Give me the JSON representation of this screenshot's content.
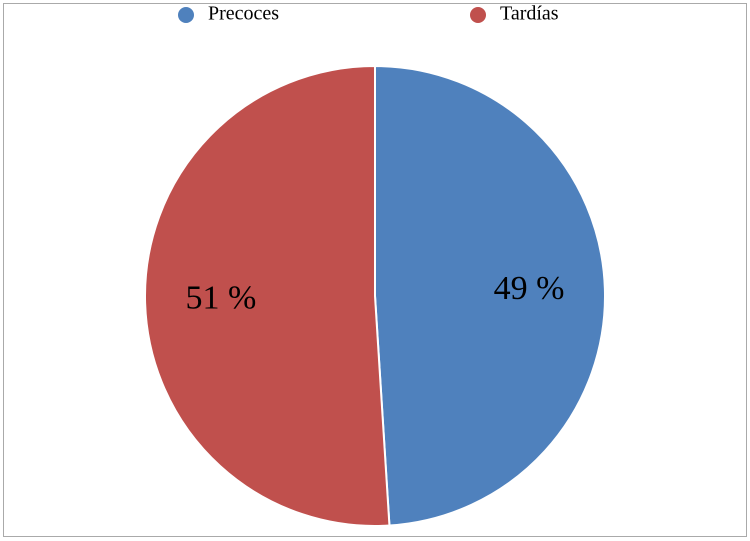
{
  "chart_data": {
    "type": "pie",
    "legend": "top",
    "categories": [
      "Precoces",
      "Tardías"
    ],
    "values": [
      49,
      51
    ],
    "value_labels": [
      "49 %",
      "51 %"
    ],
    "colors": [
      "#4f81bd",
      "#c0504d"
    ]
  }
}
